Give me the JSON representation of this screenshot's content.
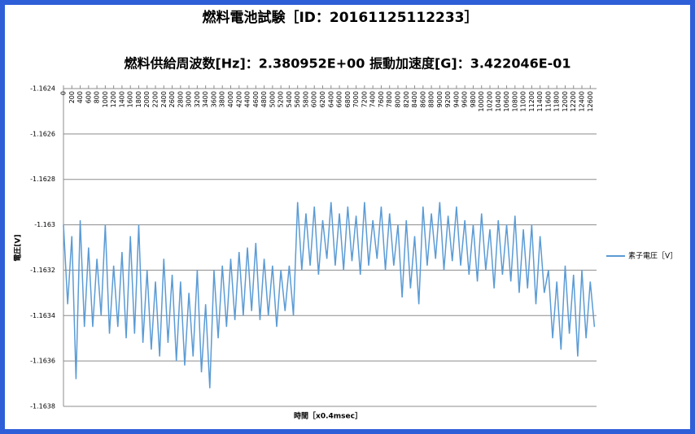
{
  "chart_data": {
    "type": "line",
    "title": "燃料電池試験［ID：20161125112233］",
    "subtitle": "燃料供給周波数[Hz]：2.380952E+00 振動加速度[G]：3.422046E-01",
    "x_label": "時間［x0.4msec］",
    "y_label": "電圧[V]",
    "xlim": [
      0,
      12750
    ],
    "ylim": [
      -1.1638,
      -1.1624
    ],
    "yticks": [
      -1.1638,
      -1.1636,
      -1.1634,
      -1.1632,
      -1.163,
      -1.1628,
      -1.1626,
      -1.1624
    ],
    "xticks": [
      0,
      200,
      400,
      600,
      800,
      1000,
      1200,
      1400,
      1600,
      1800,
      2000,
      2200,
      2400,
      2600,
      2800,
      3000,
      3200,
      3400,
      3600,
      3800,
      4000,
      4200,
      4400,
      4600,
      4800,
      5000,
      5200,
      5400,
      5600,
      5800,
      6000,
      6200,
      6400,
      6600,
      6800,
      7000,
      7200,
      7400,
      7600,
      7800,
      8000,
      8200,
      8400,
      8600,
      8800,
      9000,
      9200,
      9400,
      9600,
      9800,
      10000,
      10200,
      10400,
      10600,
      10800,
      11000,
      11200,
      11400,
      11600,
      11800,
      12000,
      12200,
      12400,
      12600
    ],
    "grid": true,
    "legend": "right",
    "x": [
      0,
      100,
      200,
      300,
      400,
      500,
      600,
      700,
      800,
      900,
      1000,
      1100,
      1200,
      1300,
      1400,
      1500,
      1600,
      1700,
      1800,
      1900,
      2000,
      2100,
      2200,
      2300,
      2400,
      2500,
      2600,
      2700,
      2800,
      2900,
      3000,
      3100,
      3200,
      3300,
      3400,
      3500,
      3600,
      3700,
      3800,
      3900,
      4000,
      4100,
      4200,
      4300,
      4400,
      4500,
      4600,
      4700,
      4800,
      4900,
      5000,
      5100,
      5200,
      5300,
      5400,
      5500,
      5600,
      5700,
      5800,
      5900,
      6000,
      6100,
      6200,
      6300,
      6400,
      6500,
      6600,
      6700,
      6800,
      6900,
      7000,
      7100,
      7200,
      7300,
      7400,
      7500,
      7600,
      7700,
      7800,
      7900,
      8000,
      8100,
      8200,
      8300,
      8400,
      8500,
      8600,
      8700,
      8800,
      8900,
      9000,
      9100,
      9200,
      9300,
      9400,
      9500,
      9600,
      9700,
      9800,
      9900,
      10000,
      10100,
      10200,
      10300,
      10400,
      10500,
      10600,
      10700,
      10800,
      10900,
      11000,
      11100,
      11200,
      11300,
      11400,
      11500,
      11600,
      11700,
      11800,
      11900,
      12000,
      12100,
      12200,
      12300,
      12400,
      12500,
      12600,
      12700
    ],
    "series": [
      {
        "name": "素子電圧［V］",
        "color": "#5b9bd5",
        "values": [
          -1.163,
          -1.16335,
          -1.16305,
          -1.16368,
          -1.16298,
          -1.16345,
          -1.1631,
          -1.16345,
          -1.16315,
          -1.1634,
          -1.163,
          -1.16348,
          -1.16318,
          -1.16345,
          -1.16312,
          -1.1635,
          -1.16305,
          -1.16348,
          -1.163,
          -1.16352,
          -1.1632,
          -1.16355,
          -1.16325,
          -1.16358,
          -1.16315,
          -1.16352,
          -1.16322,
          -1.1636,
          -1.16325,
          -1.16362,
          -1.1633,
          -1.16358,
          -1.1632,
          -1.16365,
          -1.16335,
          -1.16372,
          -1.1632,
          -1.1635,
          -1.16318,
          -1.16345,
          -1.16315,
          -1.16342,
          -1.16312,
          -1.1634,
          -1.1631,
          -1.16338,
          -1.16308,
          -1.16342,
          -1.16315,
          -1.1634,
          -1.16318,
          -1.16345,
          -1.1632,
          -1.16338,
          -1.16318,
          -1.1634,
          -1.1629,
          -1.1632,
          -1.16295,
          -1.16318,
          -1.16292,
          -1.16322,
          -1.16298,
          -1.16315,
          -1.1629,
          -1.16318,
          -1.16295,
          -1.1632,
          -1.16292,
          -1.16316,
          -1.16296,
          -1.16322,
          -1.1629,
          -1.16318,
          -1.16298,
          -1.16315,
          -1.16292,
          -1.1632,
          -1.16295,
          -1.16318,
          -1.163,
          -1.16332,
          -1.16298,
          -1.16328,
          -1.16305,
          -1.16335,
          -1.16292,
          -1.16318,
          -1.16295,
          -1.16315,
          -1.1629,
          -1.1632,
          -1.16296,
          -1.16316,
          -1.16292,
          -1.16318,
          -1.16298,
          -1.16322,
          -1.163,
          -1.16325,
          -1.16295,
          -1.1632,
          -1.16302,
          -1.16328,
          -1.16298,
          -1.16322,
          -1.163,
          -1.16325,
          -1.16296,
          -1.1633,
          -1.16302,
          -1.16328,
          -1.163,
          -1.16335,
          -1.16305,
          -1.1633,
          -1.1632,
          -1.1635,
          -1.16325,
          -1.16355,
          -1.16318,
          -1.16348,
          -1.16322,
          -1.16358,
          -1.1632,
          -1.1635,
          -1.16325,
          -1.16345
        ]
      }
    ]
  }
}
